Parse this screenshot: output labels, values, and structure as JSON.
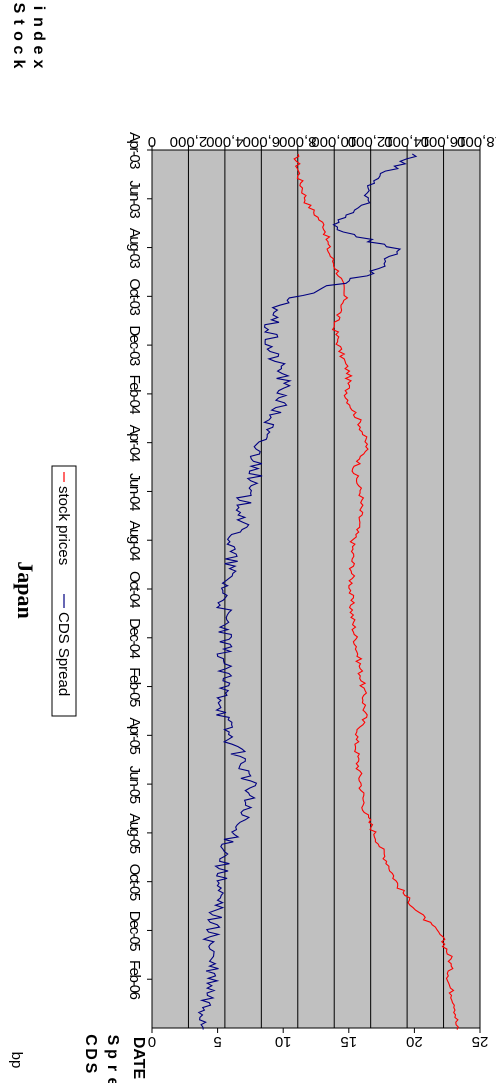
{
  "chart_data": {
    "type": "line",
    "title": "Japan",
    "xlabel": "DATE",
    "y_left_label": "Stock index",
    "y_right_label": "CDS Spread",
    "y_right_unit": "bp",
    "y_left_ticks": [
      "0",
      "2,000",
      "4,000",
      "6,000",
      "8,000",
      "10,000",
      "12,000",
      "14,000",
      "16,000",
      "18,000"
    ],
    "y_right_ticks": [
      "0",
      "5",
      "10",
      "15",
      "20",
      "25"
    ],
    "y_left_range": [
      0,
      18000
    ],
    "y_right_range": [
      0,
      25
    ],
    "categories": [
      "Apr-03",
      "Jun-03",
      "Aug-03",
      "Oct-03",
      "Dec-03",
      "Feb-04",
      "Apr-04",
      "Jun-04",
      "Aug-04",
      "Oct-04",
      "Dec-04",
      "Feb-05",
      "Apr-05",
      "Jun-05",
      "Aug-05",
      "Oct-05",
      "Dec-05",
      "Feb-06"
    ],
    "legend": [
      "stock prices",
      "CDS Spread"
    ],
    "legend_position": "bottom",
    "grid": true,
    "plot_background": "#c0c0c0",
    "series": [
      {
        "name": "stock prices",
        "axis": "left",
        "color": "#ff0000",
        "x": [
          "Apr-03",
          "May-03",
          "Jun-03",
          "Jul-03",
          "Aug-03",
          "Sep-03",
          "Oct-03",
          "Nov-03",
          "Dec-03",
          "Jan-04",
          "Feb-04",
          "Mar-04",
          "Apr-04",
          "May-04",
          "Jun-04",
          "Jul-04",
          "Aug-04",
          "Sep-04",
          "Oct-04",
          "Nov-04",
          "Dec-04",
          "Jan-05",
          "Feb-05",
          "Mar-05",
          "Apr-05",
          "May-05",
          "Jun-05",
          "Jul-05",
          "Aug-05",
          "Sep-05",
          "Oct-05",
          "Nov-05",
          "Dec-05",
          "Jan-06",
          "Feb-06",
          "Mar-06"
        ],
        "values": [
          7900,
          8100,
          8500,
          9500,
          9700,
          10300,
          10600,
          10000,
          10300,
          10800,
          10700,
          11400,
          11800,
          11100,
          11500,
          11400,
          11000,
          11000,
          10900,
          11000,
          11200,
          11400,
          11600,
          11700,
          11200,
          11300,
          11500,
          11700,
          12300,
          12900,
          13500,
          14500,
          15800,
          16400,
          16300,
          16700
        ]
      },
      {
        "name": "CDS Spread",
        "axis": "right",
        "color": "#000080",
        "x": [
          "Apr-03",
          "May-03",
          "Jun-03",
          "Jul-03",
          "Aug-03",
          "Sep-03",
          "Oct-03",
          "Nov-03",
          "Dec-03",
          "Jan-04",
          "Feb-04",
          "Mar-04",
          "Apr-04",
          "May-04",
          "Jun-04",
          "Jul-04",
          "Aug-04",
          "Sep-04",
          "Oct-04",
          "Nov-04",
          "Dec-04",
          "Jan-05",
          "Feb-05",
          "Mar-05",
          "Apr-05",
          "May-05",
          "Jun-05",
          "Jul-05",
          "Aug-05",
          "Sep-05",
          "Oct-05",
          "Nov-05",
          "Dec-05",
          "Jan-06",
          "Feb-06",
          "Mar-06"
        ],
        "values": [
          20,
          17,
          16,
          14,
          19,
          16,
          10,
          9,
          9,
          10,
          10,
          9,
          8,
          8,
          7,
          7,
          6,
          6,
          5.5,
          5.5,
          5.5,
          5.5,
          5.5,
          5.5,
          6,
          7,
          7.5,
          7,
          6,
          5.5,
          5,
          5,
          4.5,
          4.5,
          4.5,
          4
        ]
      }
    ]
  }
}
